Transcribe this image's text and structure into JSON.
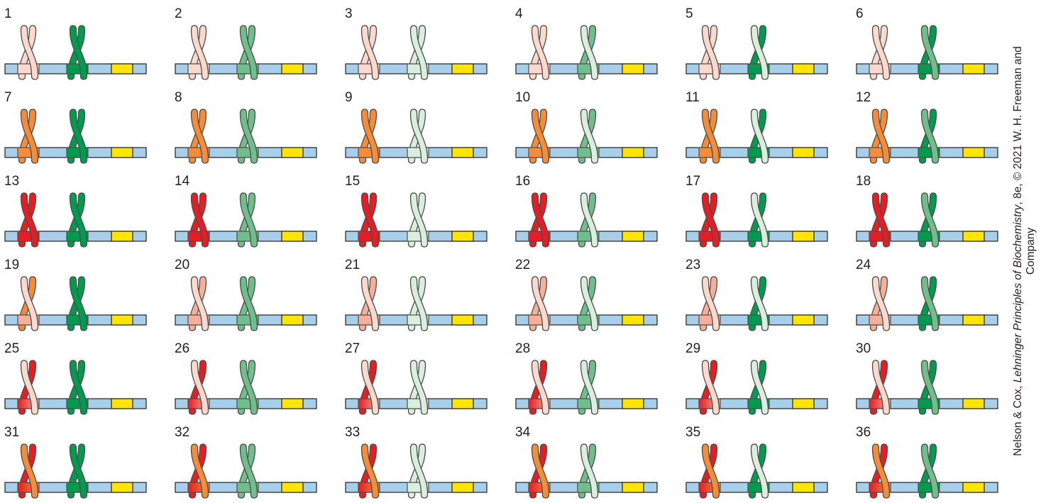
{
  "colors": {
    "bar_fill": "#a7cfea",
    "yellow_box": "#ffe500",
    "outline": "#4d4d4d",
    "green_dark": "#009b4e",
    "green_medium": "#6fbe8b",
    "green_pale": "#d9eedd",
    "pink_pale": "#fcd9cc",
    "pink_medium": "#f6b09a",
    "orange": "#f48c3a",
    "red": "#e31e24"
  },
  "cells": [
    {
      "num": "1",
      "left": [
        "pink_pale",
        "pink_pale"
      ],
      "left_box": "pink_pale",
      "right": [
        "green_dark",
        "green_dark"
      ],
      "right_box": "green_dark"
    },
    {
      "num": "2",
      "left": [
        "pink_pale",
        "pink_pale"
      ],
      "left_box": "pink_pale",
      "right": [
        "green_medium",
        "green_medium"
      ],
      "right_box": "green_medium"
    },
    {
      "num": "3",
      "left": [
        "pink_pale",
        "pink_pale"
      ],
      "left_box": "pink_pale",
      "right": [
        "green_pale",
        "green_pale"
      ],
      "right_box": "green_pale"
    },
    {
      "num": "4",
      "left": [
        "pink_pale",
        "pink_pale"
      ],
      "left_box": "pink_pale",
      "right": [
        "green_pale",
        "green_medium"
      ],
      "right_box": "green_medium"
    },
    {
      "num": "5",
      "left": [
        "pink_pale",
        "pink_pale"
      ],
      "left_box": "pink_pale",
      "right": [
        "green_pale",
        "green_dark"
      ],
      "right_box": "green_dark"
    },
    {
      "num": "6",
      "left": [
        "pink_pale",
        "pink_pale"
      ],
      "left_box": "pink_pale",
      "right": [
        "green_medium",
        "green_dark"
      ],
      "right_box": "green_dark"
    },
    {
      "num": "7",
      "left": [
        "orange",
        "orange"
      ],
      "left_box": "orange",
      "right": [
        "green_dark",
        "green_dark"
      ],
      "right_box": "green_dark"
    },
    {
      "num": "8",
      "left": [
        "orange",
        "orange"
      ],
      "left_box": "orange",
      "right": [
        "green_medium",
        "green_medium"
      ],
      "right_box": "green_medium"
    },
    {
      "num": "9",
      "left": [
        "orange",
        "orange"
      ],
      "left_box": "orange",
      "right": [
        "green_pale",
        "green_pale"
      ],
      "right_box": "green_pale"
    },
    {
      "num": "10",
      "left": [
        "orange",
        "orange"
      ],
      "left_box": "orange",
      "right": [
        "green_pale",
        "green_medium"
      ],
      "right_box": "green_medium"
    },
    {
      "num": "11",
      "left": [
        "orange",
        "orange"
      ],
      "left_box": "orange",
      "right": [
        "green_pale",
        "green_dark"
      ],
      "right_box": "green_dark"
    },
    {
      "num": "12",
      "left": [
        "orange",
        "orange"
      ],
      "left_box": "orange",
      "right": [
        "green_medium",
        "green_dark"
      ],
      "right_box": "green_dark"
    },
    {
      "num": "13",
      "left": [
        "red",
        "red"
      ],
      "left_box": "red",
      "right": [
        "green_dark",
        "green_dark"
      ],
      "right_box": "green_dark"
    },
    {
      "num": "14",
      "left": [
        "red",
        "red"
      ],
      "left_box": "red",
      "right": [
        "green_medium",
        "green_medium"
      ],
      "right_box": "green_medium"
    },
    {
      "num": "15",
      "left": [
        "red",
        "red"
      ],
      "left_box": "red",
      "right": [
        "green_pale",
        "green_pale"
      ],
      "right_box": "green_pale"
    },
    {
      "num": "16",
      "left": [
        "red",
        "red"
      ],
      "left_box": "red",
      "right": [
        "green_pale",
        "green_medium"
      ],
      "right_box": "green_medium"
    },
    {
      "num": "17",
      "left": [
        "red",
        "red"
      ],
      "left_box": "red",
      "right": [
        "green_pale",
        "green_dark"
      ],
      "right_box": "green_dark"
    },
    {
      "num": "18",
      "left": [
        "red",
        "red"
      ],
      "left_box": "red",
      "right": [
        "green_medium",
        "green_dark"
      ],
      "right_box": "green_dark"
    },
    {
      "num": "19",
      "left": [
        "pink_pale",
        "orange"
      ],
      "left_box": "pink_medium",
      "right": [
        "green_dark",
        "green_dark"
      ],
      "right_box": "green_dark"
    },
    {
      "num": "20",
      "left": [
        "pink_pale",
        "pink_medium"
      ],
      "left_box": "pink_medium",
      "right": [
        "green_medium",
        "green_medium"
      ],
      "right_box": "green_medium"
    },
    {
      "num": "21",
      "left": [
        "pink_pale",
        "pink_medium"
      ],
      "left_box": "pink_medium",
      "right": [
        "green_pale",
        "green_pale"
      ],
      "right_box": "green_pale"
    },
    {
      "num": "22",
      "left": [
        "pink_pale",
        "pink_medium"
      ],
      "left_box": "pink_medium",
      "right": [
        "green_pale",
        "green_medium"
      ],
      "right_box": "green_medium"
    },
    {
      "num": "23",
      "left": [
        "pink_pale",
        "pink_medium"
      ],
      "left_box": "pink_medium",
      "right": [
        "green_pale",
        "green_dark"
      ],
      "right_box": "green_dark"
    },
    {
      "num": "24",
      "left": [
        "pink_pale",
        "pink_medium"
      ],
      "left_box": "pink_medium",
      "right": [
        "green_medium",
        "green_dark"
      ],
      "right_box": "green_dark"
    },
    {
      "num": "25",
      "left": [
        "pink_pale",
        "red"
      ],
      "left_box": "red_grad",
      "right": [
        "green_dark",
        "green_dark"
      ],
      "right_box": "green_dark"
    },
    {
      "num": "26",
      "left": [
        "pink_pale",
        "red"
      ],
      "left_box": "red_grad",
      "right": [
        "green_medium",
        "green_medium"
      ],
      "right_box": "green_medium"
    },
    {
      "num": "27",
      "left": [
        "pink_pale",
        "red"
      ],
      "left_box": "red_grad",
      "right": [
        "green_pale",
        "green_pale"
      ],
      "right_box": "green_pale"
    },
    {
      "num": "28",
      "left": [
        "pink_pale",
        "red"
      ],
      "left_box": "red_grad",
      "right": [
        "green_pale",
        "green_medium"
      ],
      "right_box": "green_medium"
    },
    {
      "num": "29",
      "left": [
        "pink_pale",
        "red"
      ],
      "left_box": "red_grad",
      "right": [
        "green_pale",
        "green_dark"
      ],
      "right_box": "green_dark"
    },
    {
      "num": "30",
      "left": [
        "pink_pale",
        "red"
      ],
      "left_box": "red_grad",
      "right": [
        "green_medium",
        "green_dark"
      ],
      "right_box": "green_dark"
    },
    {
      "num": "31",
      "left": [
        "orange",
        "red"
      ],
      "left_box": "red_orange",
      "right": [
        "green_dark",
        "green_dark"
      ],
      "right_box": "green_dark"
    },
    {
      "num": "32",
      "left": [
        "orange",
        "red"
      ],
      "left_box": "red_orange",
      "right": [
        "green_medium",
        "green_medium"
      ],
      "right_box": "green_medium"
    },
    {
      "num": "33",
      "left": [
        "orange",
        "red"
      ],
      "left_box": "red_orange",
      "right": [
        "green_pale",
        "green_pale"
      ],
      "right_box": "green_pale"
    },
    {
      "num": "34",
      "left": [
        "orange",
        "red"
      ],
      "left_box": "red_orange",
      "right": [
        "green_pale",
        "green_medium"
      ],
      "right_box": "green_medium"
    },
    {
      "num": "35",
      "left": [
        "orange",
        "red"
      ],
      "left_box": "red_orange",
      "right": [
        "green_pale",
        "green_dark"
      ],
      "right_box": "green_dark"
    },
    {
      "num": "36",
      "left": [
        "orange",
        "red"
      ],
      "left_box": "red_orange",
      "right": [
        "green_medium",
        "green_dark"
      ],
      "right_box": "green_dark"
    }
  ],
  "credit": {
    "line1_prefix": "Nelson & Cox, ",
    "line1_title": "Lehninger Principles of Biochemistry",
    "line1_suffix": ", 8e, © 2021 W. H. Freeman and",
    "line2": "Company"
  }
}
